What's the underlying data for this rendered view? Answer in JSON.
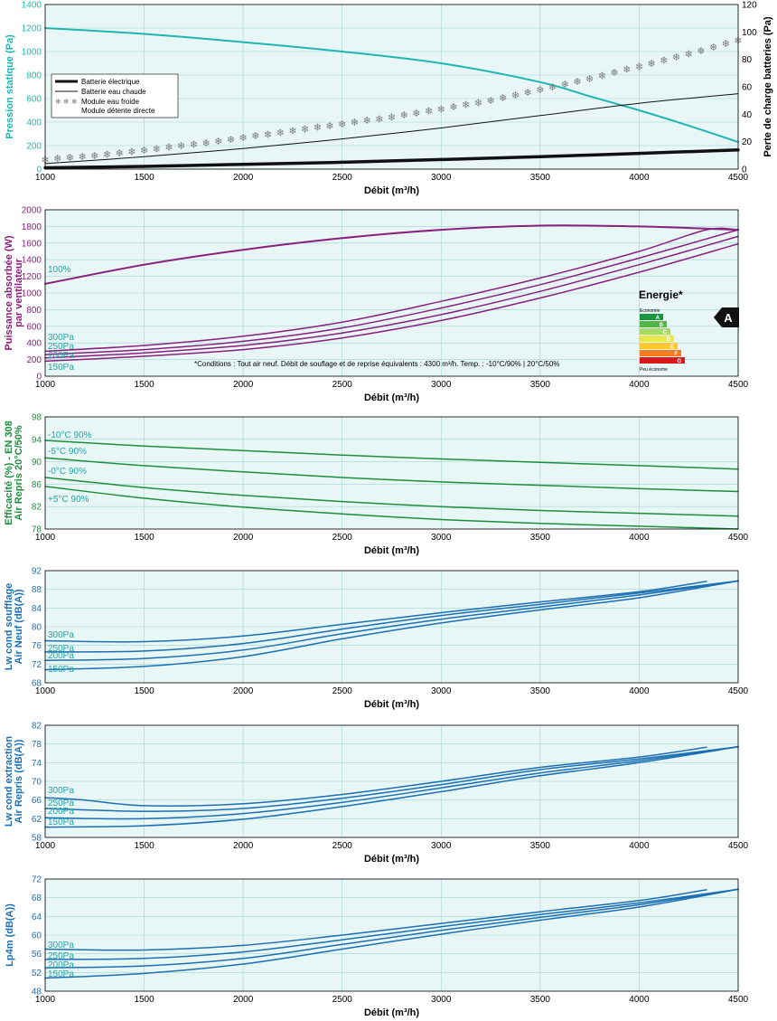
{
  "colors": {
    "plot_bg": "#e8f6f6",
    "grid": "#9fd6d6",
    "teal": "#1fb5b5",
    "purple": "#8b1f7d",
    "green": "#1e8e3e",
    "blue": "#1b6fb3",
    "black": "#111111",
    "snow": "#777777"
  },
  "chart_data": [
    {
      "type": "line",
      "xlabel": "Débit (m³/h)",
      "ylabel": "Pression statique (Pa)",
      "ylabel_right": "Perte de charge batteries (Pa)",
      "xlim": [
        1000,
        4500
      ],
      "ylim": [
        0,
        1400
      ],
      "ylim_right": [
        0,
        120
      ],
      "xticks": [
        1000,
        1500,
        2000,
        2500,
        3000,
        3500,
        4000,
        4500
      ],
      "yticks": [
        0,
        200,
        400,
        600,
        800,
        1000,
        1200,
        1400
      ],
      "yticks_right": [
        0,
        20,
        40,
        60,
        80,
        100,
        120
      ],
      "legend": [
        "Batterie électrique",
        "Batterie eau chaude",
        "Module eau froide",
        "Module détente directe"
      ],
      "series": [
        {
          "axis": "left",
          "color": "teal",
          "width": 2,
          "style": "line",
          "x": [
            1000,
            1500,
            2000,
            2500,
            3000,
            3500,
            3750,
            4000,
            4250,
            4500
          ],
          "y": [
            1200,
            1150,
            1080,
            1000,
            900,
            740,
            620,
            500,
            370,
            230
          ]
        },
        {
          "axis": "right",
          "color": "black",
          "width": 3.5,
          "style": "line",
          "x": [
            1000,
            1500,
            2000,
            2500,
            3000,
            3500,
            4000,
            4500
          ],
          "y": [
            1,
            2,
            3.5,
            5,
            7,
            9,
            11.5,
            14
          ]
        },
        {
          "axis": "right",
          "color": "black",
          "width": 1,
          "style": "line",
          "x": [
            1000,
            1500,
            2000,
            2500,
            3000,
            3500,
            4000,
            4500
          ],
          "y": [
            4,
            9,
            15,
            22,
            30,
            39,
            48,
            55
          ]
        },
        {
          "axis": "right",
          "color": "snow",
          "width": 0,
          "style": "snow",
          "x": [
            1000,
            1250,
            1500,
            1750,
            2000,
            2250,
            2500,
            2750,
            3000,
            3250,
            3500,
            3750,
            4000,
            4250,
            4500
          ],
          "y": [
            7,
            10,
            14,
            18,
            23,
            28,
            33,
            38,
            44,
            50,
            58,
            66,
            75,
            84,
            94
          ]
        }
      ]
    },
    {
      "type": "line",
      "xlabel": "Débit (m³/h)",
      "ylabel": "Puissance absorbée (W) par ventilateur",
      "xlim": [
        1000,
        4500
      ],
      "ylim": [
        0,
        2000
      ],
      "xticks": [
        1000,
        1500,
        2000,
        2500,
        3000,
        3500,
        4000,
        4500
      ],
      "yticks": [
        0,
        200,
        400,
        600,
        800,
        1000,
        1200,
        1400,
        1600,
        1800,
        2000
      ],
      "note": "*Conditions : Tout air neuf. Débit de souflage et de reprise équivalents : 4300 m³/h. Temp. : -10°C/90% | 20°C/50%",
      "energy_label": {
        "title": "Energie*",
        "top": "Economie",
        "bottom": "Peu économe",
        "grade": "A",
        "classes": [
          "A",
          "B",
          "C",
          "D",
          "E",
          "F",
          "G"
        ],
        "class_colors": [
          "#1a9641",
          "#52b748",
          "#a6d96a",
          "#e8e84a",
          "#fdc830",
          "#f47b20",
          "#d7191c"
        ]
      },
      "series": [
        {
          "name": "100%",
          "color": "purple",
          "width": 2,
          "x": [
            1000,
            1500,
            2000,
            2500,
            3000,
            3500,
            4000,
            4500
          ],
          "y": [
            1110,
            1340,
            1520,
            1660,
            1760,
            1810,
            1800,
            1760
          ]
        },
        {
          "name": "300Pa",
          "color": "purple",
          "width": 1.5,
          "x": [
            1000,
            1500,
            2000,
            2500,
            3000,
            3500,
            4000,
            4340,
            4500
          ],
          "y": [
            300,
            370,
            480,
            650,
            900,
            1180,
            1500,
            1760,
            1760
          ]
        },
        {
          "name": "250Pa",
          "color": "purple",
          "width": 1.5,
          "x": [
            1000,
            1500,
            2000,
            2500,
            3000,
            3500,
            4000,
            4500
          ],
          "y": [
            260,
            320,
            420,
            580,
            820,
            1100,
            1420,
            1760
          ]
        },
        {
          "name": "200Pa",
          "color": "purple",
          "width": 1.5,
          "x": [
            1000,
            1500,
            2000,
            2500,
            3000,
            3500,
            4000,
            4500
          ],
          "y": [
            220,
            280,
            370,
            520,
            740,
            1020,
            1340,
            1680
          ]
        },
        {
          "name": "150Pa",
          "color": "purple",
          "width": 1.5,
          "x": [
            1000,
            1500,
            2000,
            2500,
            3000,
            3500,
            4000,
            4500
          ],
          "y": [
            180,
            240,
            320,
            460,
            670,
            940,
            1250,
            1590
          ]
        }
      ]
    },
    {
      "type": "line",
      "xlabel": "Débit (m³/h)",
      "ylabel": "Efficacité (%) - EN 308 Air Repris 20°C/50%",
      "xlim": [
        1000,
        4500
      ],
      "ylim": [
        78,
        98
      ],
      "xticks": [
        1000,
        1500,
        2000,
        2500,
        3000,
        3500,
        4000,
        4500
      ],
      "yticks": [
        78,
        82,
        86,
        90,
        94,
        98
      ],
      "series": [
        {
          "name": "-10°C 90%",
          "color": "green",
          "width": 1.5,
          "x": [
            1000,
            1500,
            2000,
            2500,
            3000,
            3500,
            4000,
            4500
          ],
          "y": [
            93.8,
            92.8,
            92.0,
            91.2,
            90.5,
            89.9,
            89.3,
            88.7
          ]
        },
        {
          "name": "-5°C 90%",
          "color": "green",
          "width": 1.5,
          "x": [
            1000,
            1500,
            2000,
            2500,
            3000,
            3500,
            4000,
            4500
          ],
          "y": [
            90.7,
            89.3,
            88.2,
            87.2,
            86.4,
            85.8,
            85.2,
            84.7
          ]
        },
        {
          "name": "-0°C 90%",
          "color": "green",
          "width": 1.5,
          "x": [
            1000,
            1500,
            2000,
            2500,
            3000,
            3500,
            4000,
            4500
          ],
          "y": [
            87.2,
            85.4,
            84.0,
            82.9,
            82.0,
            81.3,
            80.8,
            80.3
          ]
        },
        {
          "name": "+5°C 90%",
          "color": "green",
          "width": 1.5,
          "x": [
            1000,
            1500,
            2000,
            2500,
            3000,
            3500,
            4000,
            4500
          ],
          "y": [
            85.6,
            83.5,
            81.9,
            80.7,
            79.7,
            79.0,
            78.5,
            78.0
          ]
        }
      ]
    },
    {
      "type": "line",
      "xlabel": "Débit (m³/h)",
      "ylabel": "Lw cond soufflage Air Neuf (dB(A))",
      "xlim": [
        1000,
        4500
      ],
      "ylim": [
        68,
        92
      ],
      "xticks": [
        1000,
        1500,
        2000,
        2500,
        3000,
        3500,
        4000,
        4500
      ],
      "yticks": [
        68,
        72,
        76,
        80,
        84,
        88,
        92
      ],
      "series": [
        {
          "name": "300Pa",
          "color": "blue",
          "width": 1.5,
          "x": [
            1000,
            1500,
            2000,
            2500,
            3000,
            3500,
            4000,
            4340
          ],
          "y": [
            77,
            76.8,
            78,
            80.5,
            83,
            85.3,
            87.5,
            89.7
          ]
        },
        {
          "name": "250Pa",
          "color": "blue",
          "width": 1.5,
          "x": [
            1000,
            1500,
            2000,
            2500,
            3000,
            3500,
            4000,
            4500
          ],
          "y": [
            74.6,
            74.8,
            76.4,
            79.5,
            82.4,
            84.8,
            87.2,
            89.8
          ]
        },
        {
          "name": "200Pa",
          "color": "blue",
          "width": 1.5,
          "x": [
            1000,
            1500,
            2000,
            2500,
            3000,
            3500,
            4000,
            4500
          ],
          "y": [
            72.8,
            73.2,
            75,
            78.5,
            81.6,
            84.2,
            86.8,
            89.8
          ]
        },
        {
          "name": "150Pa",
          "color": "blue",
          "width": 1.5,
          "x": [
            1000,
            1500,
            2000,
            2500,
            3000,
            3500,
            4000,
            4500
          ],
          "y": [
            70.8,
            71.5,
            73.6,
            77.4,
            80.8,
            83.6,
            86.2,
            89.8
          ]
        }
      ]
    },
    {
      "type": "line",
      "xlabel": "Débit (m³/h)",
      "ylabel": "Lw cond extraction Air Repris (dB(A))",
      "xlim": [
        1000,
        4500
      ],
      "ylim": [
        58,
        82
      ],
      "xticks": [
        1000,
        1500,
        2000,
        2500,
        3000,
        3500,
        4000,
        4500
      ],
      "yticks": [
        58,
        62,
        66,
        70,
        74,
        78,
        82
      ],
      "series": [
        {
          "name": "300Pa",
          "color": "blue",
          "width": 1.5,
          "x": [
            1000,
            1200,
            1500,
            2000,
            2500,
            3000,
            3500,
            4000,
            4340
          ],
          "y": [
            66.5,
            66,
            64.8,
            65.2,
            67.2,
            70,
            73,
            75.2,
            77.3
          ]
        },
        {
          "name": "250Pa",
          "color": "blue",
          "width": 1.5,
          "x": [
            1000,
            1500,
            2000,
            2500,
            3000,
            3500,
            4000,
            4500
          ],
          "y": [
            64.2,
            63.6,
            64.2,
            66.4,
            69.3,
            72.5,
            74.8,
            77.4
          ]
        },
        {
          "name": "200Pa",
          "color": "blue",
          "width": 1.5,
          "x": [
            1000,
            1500,
            2000,
            2500,
            3000,
            3500,
            4000,
            4500
          ],
          "y": [
            62.2,
            62,
            63.1,
            65.5,
            68.6,
            71.8,
            74.4,
            77.4
          ]
        },
        {
          "name": "150Pa",
          "color": "blue",
          "width": 1.5,
          "x": [
            1000,
            1500,
            2000,
            2500,
            3000,
            3500,
            4000,
            4500
          ],
          "y": [
            60.2,
            60.5,
            61.9,
            64.6,
            67.8,
            71.2,
            74.0,
            77.4
          ]
        }
      ]
    },
    {
      "type": "line",
      "xlabel": "Débit (m³/h)",
      "ylabel": "Lp4m (dB(A))",
      "xlim": [
        1000,
        4500
      ],
      "ylim": [
        48,
        72
      ],
      "xticks": [
        1000,
        1500,
        2000,
        2500,
        3000,
        3500,
        4000,
        4500
      ],
      "yticks": [
        48,
        52,
        56,
        60,
        64,
        68,
        72
      ],
      "series": [
        {
          "name": "300Pa",
          "color": "blue",
          "width": 1.5,
          "x": [
            1000,
            1500,
            2000,
            2500,
            3000,
            3500,
            4000,
            4340
          ],
          "y": [
            57,
            56.8,
            57.8,
            60,
            62.5,
            65,
            67.4,
            69.7
          ]
        },
        {
          "name": "250Pa",
          "color": "blue",
          "width": 1.5,
          "x": [
            1000,
            1500,
            2000,
            2500,
            3000,
            3500,
            4000,
            4500
          ],
          "y": [
            54.8,
            55,
            56.4,
            59,
            61.8,
            64.4,
            66.9,
            69.8
          ]
        },
        {
          "name": "200Pa",
          "color": "blue",
          "width": 1.5,
          "x": [
            1000,
            1500,
            2000,
            2500,
            3000,
            3500,
            4000,
            4500
          ],
          "y": [
            53,
            53.4,
            55,
            58,
            61,
            63.8,
            66.5,
            69.8
          ]
        },
        {
          "name": "150Pa",
          "color": "blue",
          "width": 1.5,
          "x": [
            1000,
            1500,
            2000,
            2500,
            3000,
            3500,
            4000,
            4500
          ],
          "y": [
            50.8,
            51.8,
            53.8,
            57,
            60.2,
            63.2,
            66,
            69.8
          ]
        }
      ]
    }
  ]
}
